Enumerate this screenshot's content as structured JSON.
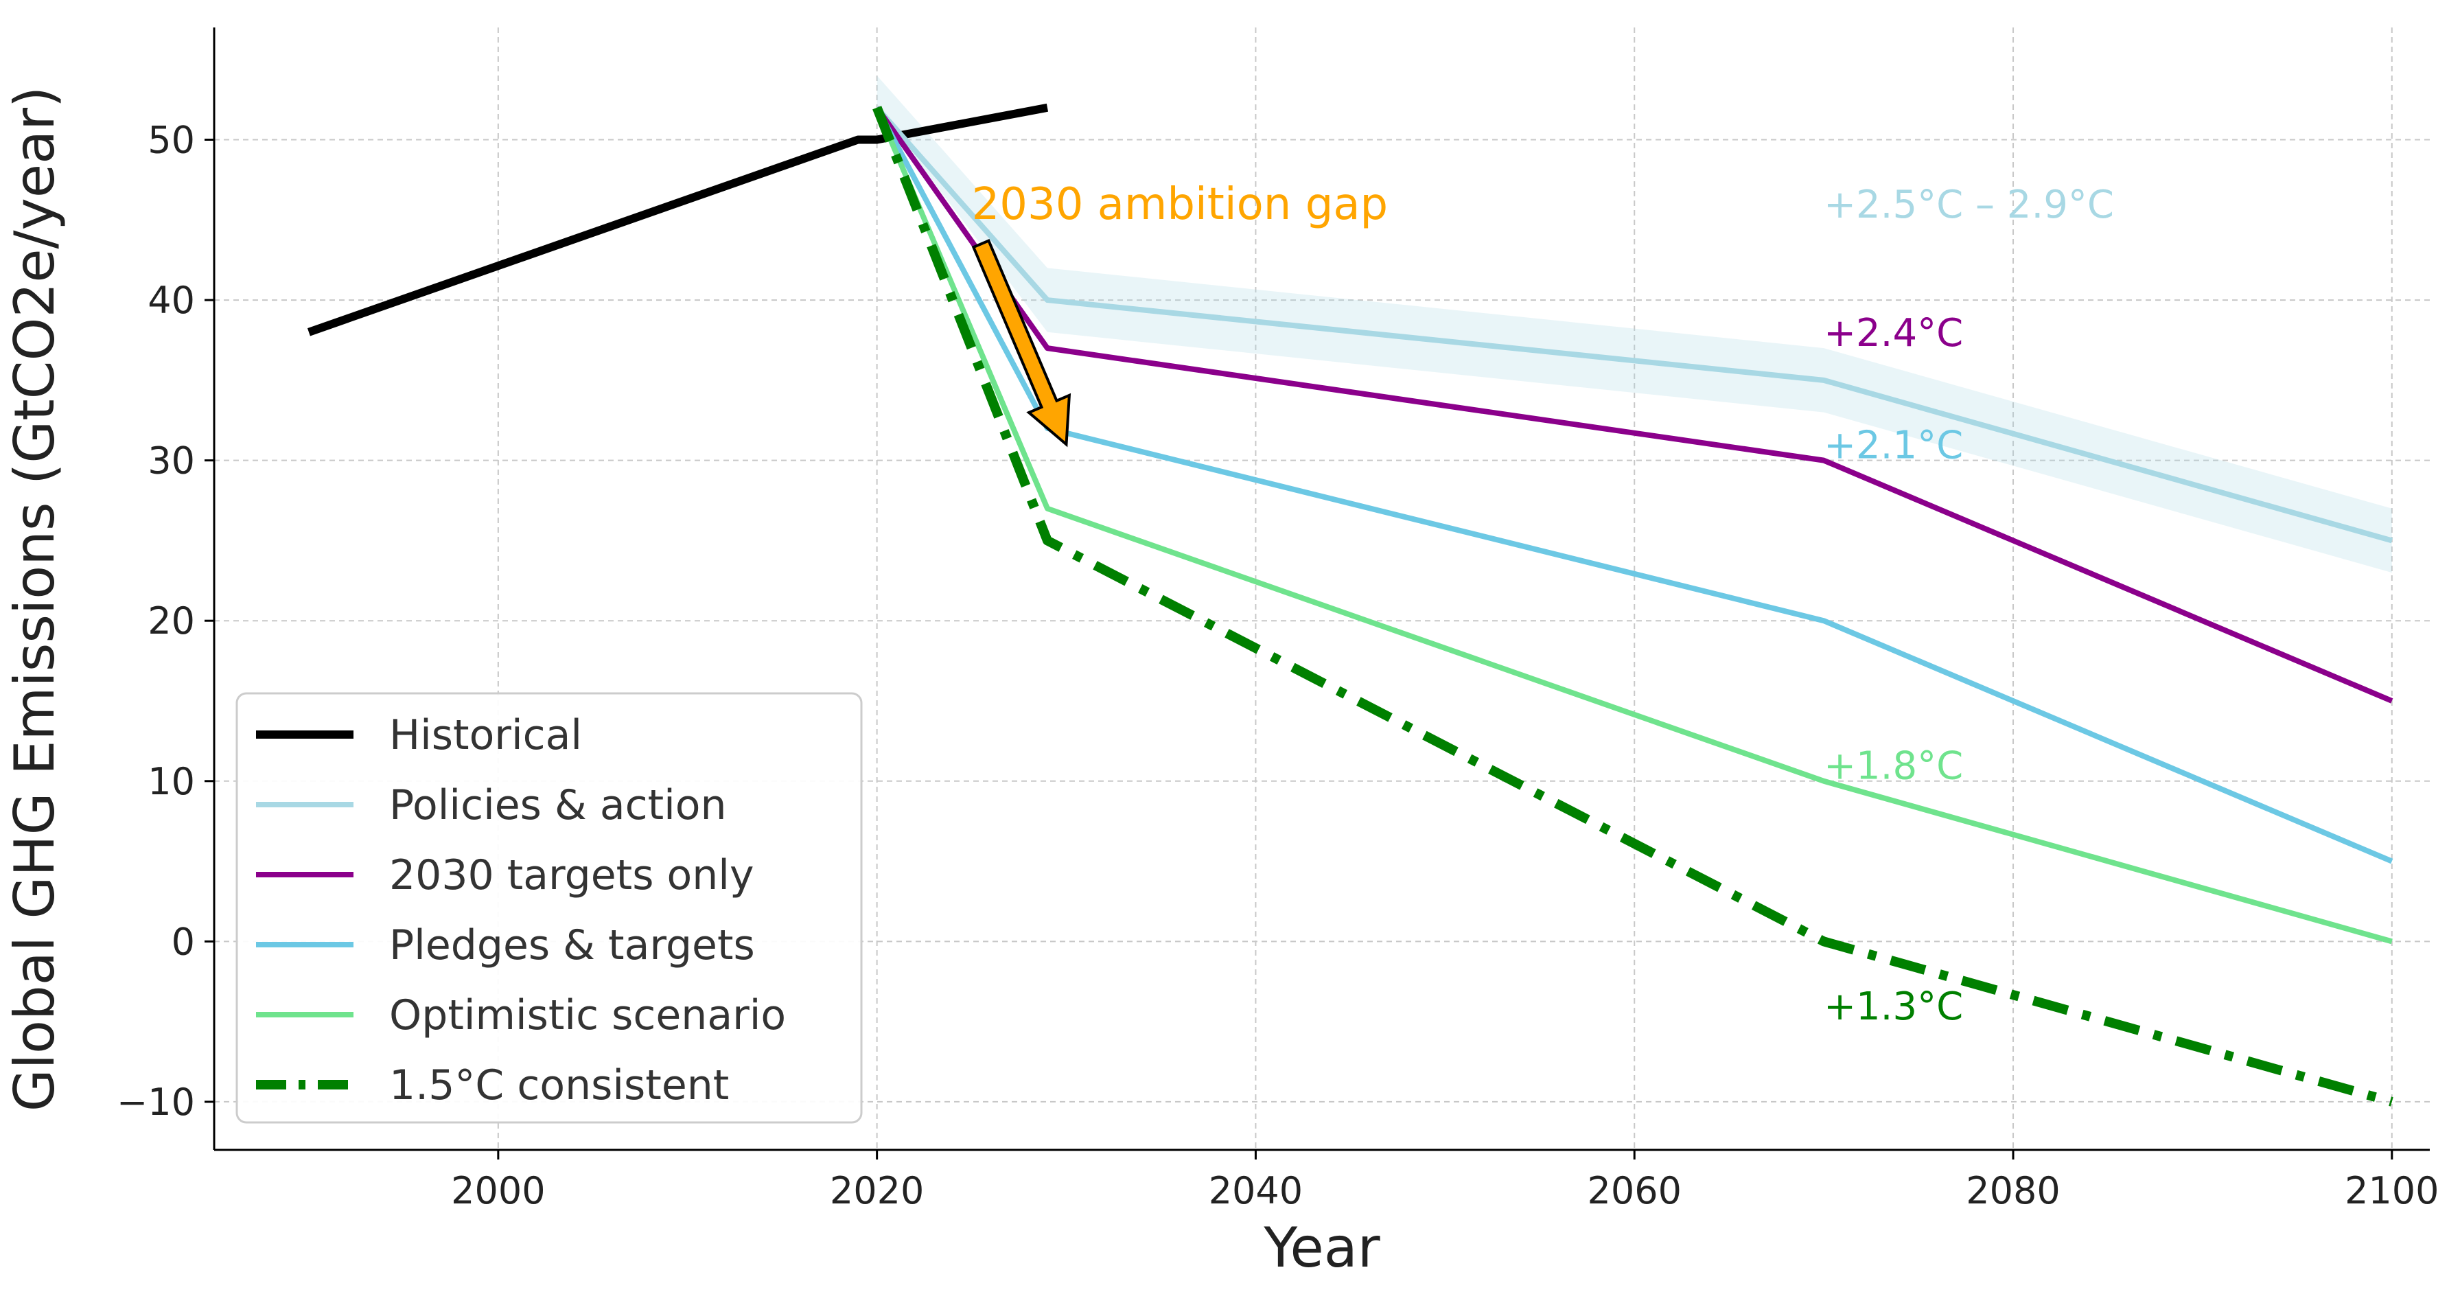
{
  "chart_data": {
    "type": "line",
    "title": "",
    "xlabel": "Year",
    "ylabel": "Global GHG Emissions (GtCO2e/year)",
    "xlim": [
      1985,
      2102
    ],
    "ylim": [
      -13,
      57
    ],
    "xticks": [
      2000,
      2020,
      2040,
      2060,
      2080,
      2100
    ],
    "yticks": [
      50,
      40,
      30,
      20,
      10,
      0,
      -10
    ],
    "grid": true,
    "legend_position": "lower-left",
    "series": [
      {
        "name": "Historical",
        "color": "#000000",
        "dash": "solid",
        "x": [
          1990,
          2019,
          2020,
          2029
        ],
        "y": [
          38,
          50,
          50,
          52
        ]
      },
      {
        "name": "Policies & action",
        "color": "#a8d8e4",
        "dash": "solid",
        "band_lower": [
          52,
          38,
          33,
          23
        ],
        "band_upper": [
          54,
          42,
          37,
          27
        ],
        "x": [
          2020,
          2029,
          2070,
          2100
        ],
        "y": [
          52,
          40,
          35,
          25
        ]
      },
      {
        "name": "2030 targets only",
        "color": "#8b008b",
        "dash": "solid",
        "x": [
          2020,
          2029,
          2070,
          2100
        ],
        "y": [
          52,
          37,
          30,
          15
        ]
      },
      {
        "name": "Pledges & targets",
        "color": "#6cc8e4",
        "dash": "solid",
        "x": [
          2020,
          2029,
          2070,
          2100
        ],
        "y": [
          52,
          32,
          20,
          5
        ]
      },
      {
        "name": "Optimistic scenario",
        "color": "#6fe38d",
        "dash": "solid",
        "x": [
          2020,
          2029,
          2070,
          2100
        ],
        "y": [
          52,
          27,
          10,
          0
        ]
      },
      {
        "name": "1.5°C consistent",
        "color": "#008000",
        "dash": "dashdot",
        "x": [
          2020,
          2029,
          2070,
          2100
        ],
        "y": [
          52,
          25,
          0,
          -10
        ]
      }
    ],
    "annotations": [
      {
        "text": "+2.5°C – 2.9°C",
        "x": 2070,
        "y": 46,
        "color": "#a8d8e4"
      },
      {
        "text": "+2.4°C",
        "x": 2070,
        "y": 38,
        "color": "#8b008b"
      },
      {
        "text": "+2.1°C",
        "x": 2070,
        "y": 31,
        "color": "#6cc8e4"
      },
      {
        "text": "+1.8°C",
        "x": 2070,
        "y": 11,
        "color": "#6fe38d"
      },
      {
        "text": "+1.3°C",
        "x": 2070,
        "y": -4,
        "color": "#008000"
      }
    ],
    "gap_annotation": {
      "text": "2030 ambition gap",
      "color": "#ffa500",
      "x": 2025,
      "y": 46,
      "arrow_from": [
        2025.5,
        43.5
      ],
      "arrow_to": [
        2030,
        31
      ]
    }
  }
}
